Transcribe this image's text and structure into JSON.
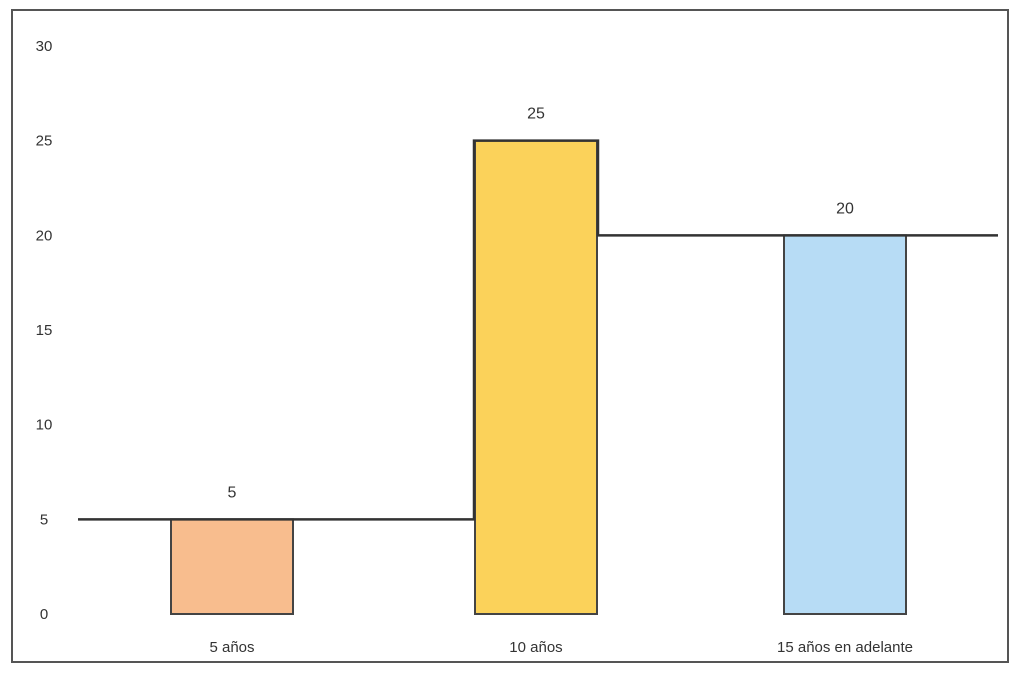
{
  "chart_data": {
    "type": "bar",
    "categories": [
      "5 años",
      "10 años",
      "15 años en adelante"
    ],
    "values": [
      5,
      25,
      20
    ],
    "data_labels": [
      "5",
      "25",
      "20"
    ],
    "ylim": [
      0,
      30
    ],
    "yticks": [
      0,
      5,
      10,
      15,
      20,
      25,
      30
    ],
    "ytick_labels": [
      "0",
      "5",
      "10",
      "15",
      "20",
      "25",
      "30"
    ],
    "grid": false,
    "bar_colors": [
      "#f8bd8e",
      "#fbd25a",
      "#b7dcf5"
    ],
    "bar_outline_color": "#444444",
    "overlay_line": "step line through the bar tops",
    "frame_color": "#555555"
  }
}
